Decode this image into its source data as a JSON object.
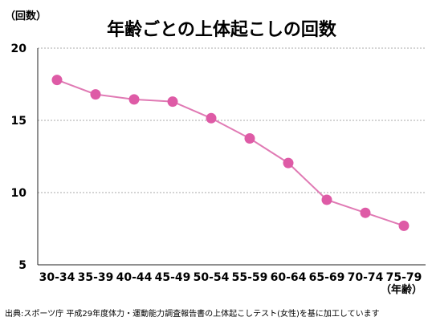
{
  "chart_data": {
    "type": "line",
    "title": "年齢ごとの上体起こしの回数",
    "ylabel": "（回数）",
    "xlabel": "（年齢）",
    "categories": [
      "30-34",
      "35-39",
      "40-44",
      "45-49",
      "50-54",
      "55-59",
      "60-64",
      "65-69",
      "70-74",
      "75-79"
    ],
    "series": [
      {
        "values": [
          17.8,
          16.8,
          16.45,
          16.3,
          15.15,
          13.75,
          12.05,
          9.5,
          8.6,
          7.7
        ]
      }
    ],
    "ylim": [
      5,
      20
    ],
    "yticks": [
      5,
      10,
      15,
      20
    ],
    "grid": true,
    "source": "出典:スポーツ庁 平成29年度体力・運動能力調査報告書の上体起こしテスト(女性)を基に加工しています",
    "colors": {
      "line": "#e07ab4",
      "marker": "#de5ba6"
    }
  }
}
